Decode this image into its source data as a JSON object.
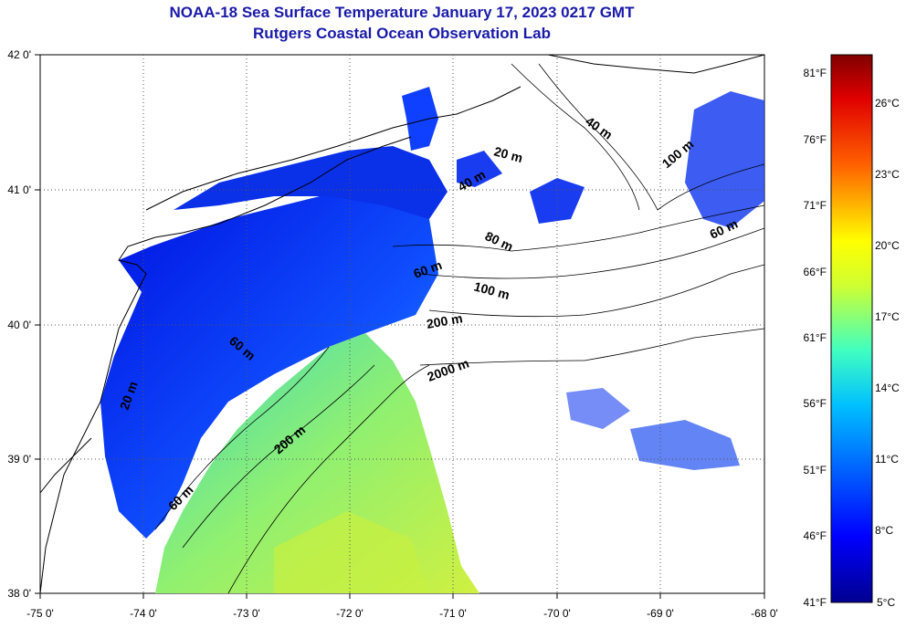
{
  "header": {
    "title": "NOAA-18 Sea Surface Temperature January 17, 2023 0217 GMT",
    "subtitle": "Rutgers Coastal Ocean Observation Lab"
  },
  "map": {
    "lon_labels": [
      "-75 0'",
      "-74 0'",
      "-73 0'",
      "-72 0'",
      "-71 0'",
      "-70 0'",
      "-69 0'",
      "-68 0'"
    ],
    "lat_labels": [
      "42 0'",
      "41 0'",
      "40 0'",
      "39 0'",
      "38 0'"
    ],
    "lon_range": [
      -75,
      -68
    ],
    "lat_range": [
      38,
      42
    ],
    "grid": "dotted",
    "contour_labels": [
      "40 m",
      "100 m",
      "20 m",
      "40 m",
      "60 m",
      "60 m",
      "80 m",
      "100 m",
      "200 m",
      "2000 m",
      "60 m",
      "20 m",
      "200 m",
      "60 m"
    ]
  },
  "colorbar": {
    "fahrenheit_labels": [
      "81°F",
      "76°F",
      "71°F",
      "66°F",
      "61°F",
      "56°F",
      "51°F",
      "46°F",
      "41°F"
    ],
    "celsius_labels": [
      "26°C",
      "23°C",
      "20°C",
      "17°C",
      "14°C",
      "11°C",
      "8°C",
      "5°C"
    ],
    "colors": [
      "#00008f",
      "#0000ff",
      "#0080ff",
      "#00ffff",
      "#80ff80",
      "#ffff00",
      "#ff8000",
      "#ff0000",
      "#800000"
    ]
  }
}
